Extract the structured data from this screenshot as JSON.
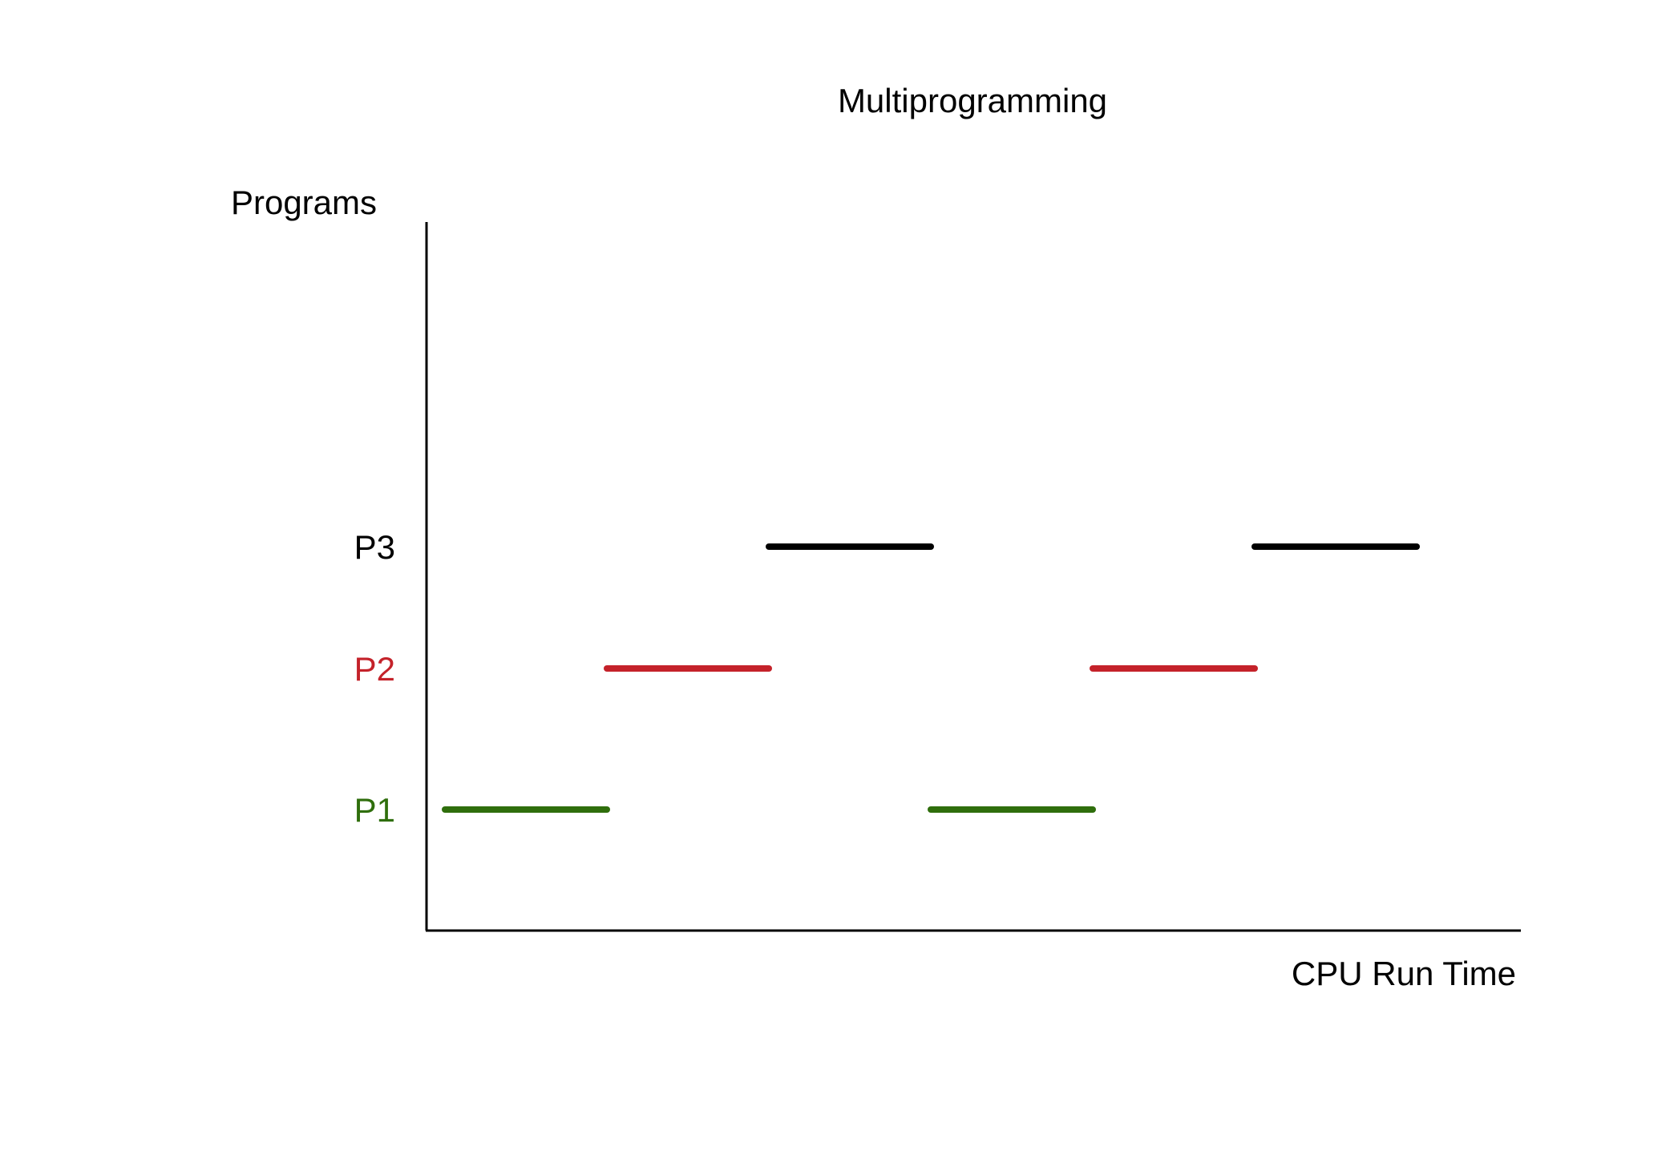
{
  "title": "Multiprogramming",
  "ylabel": "Programs",
  "xlabel": "CPU Run Time",
  "colors": {
    "P1": "#2f6e0c",
    "P2": "#c4222a",
    "P3": "#000000",
    "axis": "#000000",
    "text": "#000000"
  },
  "chart_data": {
    "type": "gantt",
    "title": "Multiprogramming",
    "xlabel": "CPU Run Time",
    "ylabel": "Programs",
    "categories": [
      "P1",
      "P2",
      "P3"
    ],
    "xlim": [
      0,
      6.5
    ],
    "segments": [
      {
        "program": "P1",
        "start": 0,
        "end": 1
      },
      {
        "program": "P2",
        "start": 1,
        "end": 2
      },
      {
        "program": "P3",
        "start": 2,
        "end": 3
      },
      {
        "program": "P1",
        "start": 3,
        "end": 4
      },
      {
        "program": "P2",
        "start": 4,
        "end": 5
      },
      {
        "program": "P3",
        "start": 5,
        "end": 6
      }
    ]
  }
}
